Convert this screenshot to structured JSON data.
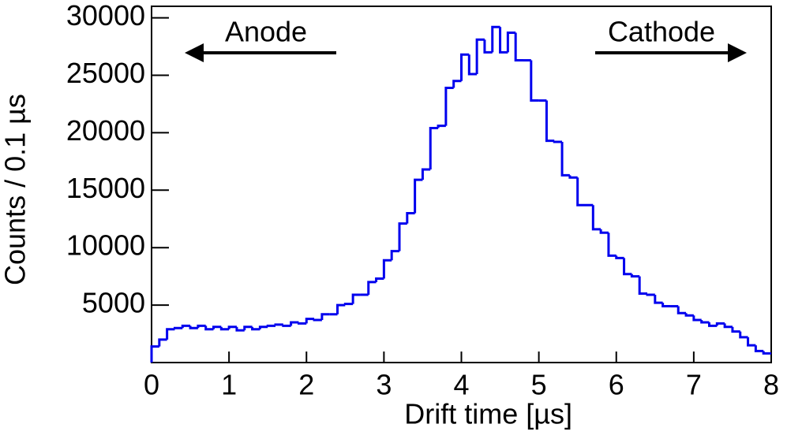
{
  "chart_data": {
    "type": "histogram",
    "x_label": "Drift time [µs]",
    "y_label": "Counts / 0.1 µs",
    "annotations": [
      "Anode",
      "Cathode"
    ],
    "color": "#0000ee",
    "bins": [
      0,
      0.1,
      0.2,
      0.3,
      0.4,
      0.5,
      0.6,
      0.7,
      0.8,
      0.9,
      1,
      1.1,
      1.2,
      1.3,
      1.4,
      1.5,
      1.6,
      1.7,
      1.8,
      1.9,
      2,
      2.1,
      2.2,
      2.3,
      2.4,
      2.5,
      2.6,
      2.7,
      2.8,
      2.9,
      3,
      3.1,
      3.2,
      3.3,
      3.4,
      3.5,
      3.6,
      3.7,
      3.8,
      3.9,
      4,
      4.1,
      4.2,
      4.3,
      4.4,
      4.5,
      4.6,
      4.7,
      4.8,
      4.9,
      5,
      5.1,
      5.2,
      5.3,
      5.4,
      5.5,
      5.6,
      5.7,
      5.8,
      5.9,
      6,
      6.1,
      6.2,
      6.3,
      6.4,
      6.5,
      6.6,
      6.7,
      6.8,
      6.9,
      7,
      7.1,
      7.2,
      7.3,
      7.4,
      7.5,
      7.6,
      7.7,
      7.8,
      7.9,
      8
    ],
    "values": [
      1400,
      2000,
      2900,
      3000,
      3200,
      3000,
      3200,
      2900,
      3100,
      2900,
      3100,
      2800,
      3100,
      2900,
      3100,
      3200,
      3300,
      3200,
      3500,
      3400,
      3800,
      3700,
      4200,
      4200,
      5000,
      5100,
      5900,
      5900,
      7000,
      7300,
      8900,
      9700,
      12100,
      13000,
      15900,
      16800,
      20400,
      20600,
      23900,
      24500,
      26800,
      25100,
      28100,
      27000,
      29200,
      27000,
      28700,
      26300,
      26300,
      22800,
      22800,
      19300,
      19200,
      16300,
      16100,
      13700,
      13700,
      11600,
      11300,
      9300,
      9100,
      7700,
      7500,
      6000,
      5900,
      5200,
      4900,
      4900,
      4300,
      4100,
      3700,
      3500,
      3200,
      3400,
      3100,
      2700,
      2200,
      1500,
      1000,
      800
    ],
    "xlim": [
      0,
      8
    ],
    "xticks": [
      0,
      1,
      2,
      3,
      4,
      5,
      6,
      7,
      8
    ],
    "ylim": [
      0,
      31000
    ],
    "yticks": [
      5000,
      10000,
      15000,
      20000,
      25000,
      30000
    ]
  }
}
